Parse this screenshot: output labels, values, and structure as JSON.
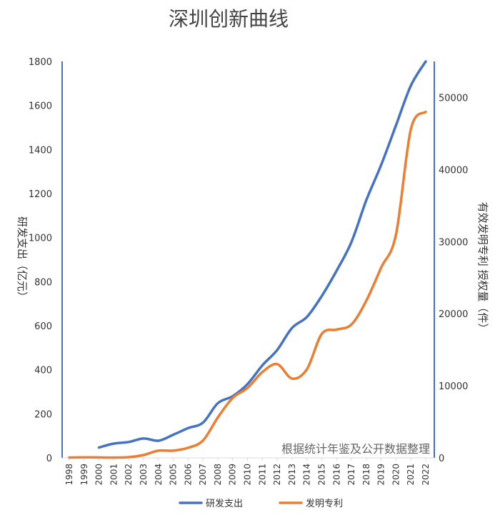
{
  "chart_data": {
    "type": "line",
    "title": "深圳创新曲线",
    "ylabel": "研发支出（亿元）",
    "y2label": "有效发明专利 授权量（件）",
    "annotation": "根据统计年鉴及公开数据整理",
    "ylim": [
      0,
      1800
    ],
    "y2lim": [
      0,
      55000
    ],
    "yticks": [
      "0",
      "200",
      "400",
      "600",
      "800",
      "1000",
      "1200",
      "1400",
      "1600",
      "1800"
    ],
    "y2ticks": [
      "0",
      "10000",
      "20000",
      "30000",
      "40000",
      "50000"
    ],
    "categories": [
      "1998",
      "1999",
      "2000",
      "2001",
      "2002",
      "2003",
      "2004",
      "2005",
      "2006",
      "2007",
      "2008",
      "2009",
      "2010",
      "2011",
      "2012",
      "2013",
      "2014",
      "2015",
      "2016",
      "2017",
      "2018",
      "2019",
      "2020",
      "2021",
      "2022"
    ],
    "legend_position": "bottom",
    "grid": false,
    "series": [
      {
        "name": "研发支出",
        "axis": "left",
        "color": "#4472C4",
        "values": [
          null,
          null,
          47,
          65,
          72,
          88,
          78,
          105,
          135,
          160,
          248,
          280,
          335,
          420,
          490,
          590,
          640,
          735,
          850,
          980,
          1170,
          1330,
          1510,
          1690,
          1800
        ]
      },
      {
        "name": "发明专利",
        "axis": "right",
        "color": "#ED7D31",
        "values": [
          50,
          80,
          60,
          40,
          100,
          400,
          1000,
          1000,
          1400,
          2400,
          5600,
          8300,
          9700,
          11900,
          13000,
          11000,
          12300,
          17200,
          17800,
          18500,
          21800,
          26400,
          31000,
          45600,
          48000
        ]
      }
    ]
  }
}
